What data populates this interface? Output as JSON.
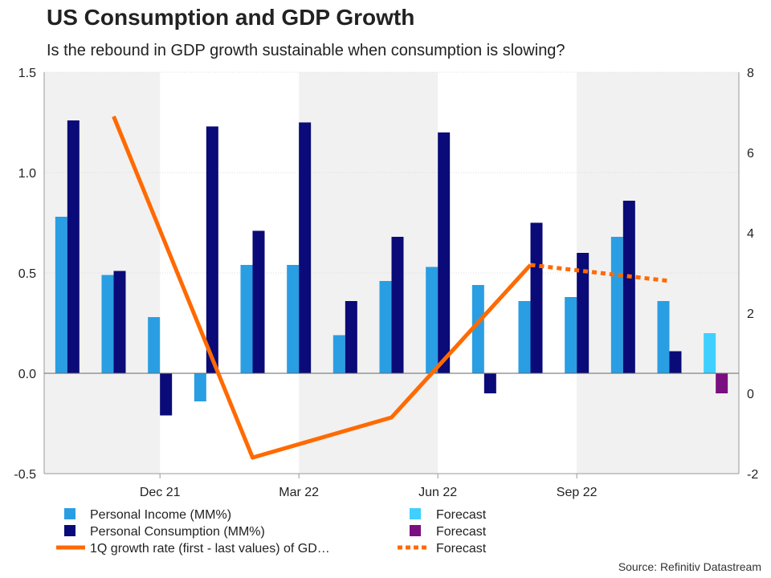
{
  "header": {
    "title": "US Consumption and GDP Growth",
    "subtitle": "Is the rebound in GDP growth sustainable when consumption is slowing?"
  },
  "footer": {
    "source": "Source: Refinitiv Datastream"
  },
  "colors": {
    "income": "#2a9ee3",
    "consumption": "#0a0a78",
    "gdp": "#ff6a00",
    "income_forecast": "#3fd0ff",
    "consumption_forecast": "#7a0f80",
    "shade": "#f1f1f1",
    "zero_line": "#666666",
    "grid": "#dddddd"
  },
  "chart_data": {
    "type": "bar",
    "months": [
      "Oct 21",
      "Nov 21",
      "Dec 21",
      "Jan 22",
      "Feb 22",
      "Mar 22",
      "Apr 22",
      "May 22",
      "Jun 22",
      "Jul 22",
      "Aug 22",
      "Sep 22",
      "Oct 22",
      "Nov 22"
    ],
    "x_tick_labels": [
      {
        "month": "Dec 21",
        "label": "Dec 21"
      },
      {
        "month": "Mar 22",
        "label": "Mar 22"
      },
      {
        "month": "Jun 22",
        "label": "Jun 22"
      },
      {
        "month": "Sep 22",
        "label": "Sep 22"
      }
    ],
    "y_left": {
      "min": -0.5,
      "max": 1.5,
      "ticks": [
        "-0.5",
        "0.0",
        "0.5",
        "1.0",
        "1.5"
      ]
    },
    "y_right": {
      "min": -2,
      "max": 8,
      "ticks": [
        "-2",
        "0",
        "2",
        "4",
        "6",
        "8"
      ]
    },
    "grid": true,
    "shaded_quarters": [
      "Q4 2021",
      "Q2 2022",
      "Q4 2022"
    ],
    "series": [
      {
        "name": "Personal Income (MM%)",
        "kind": "bar",
        "axis": "left",
        "values": [
          0.78,
          0.49,
          0.28,
          -0.14,
          0.54,
          0.54,
          0.19,
          0.46,
          0.53,
          0.44,
          0.36,
          0.38,
          0.68,
          0.36
        ],
        "forecast": {
          "name": "Forecast",
          "month": "Dec 22",
          "value": 0.2
        }
      },
      {
        "name": "Personal Consumption (MM%)",
        "kind": "bar",
        "axis": "left",
        "values": [
          1.26,
          0.51,
          -0.21,
          1.23,
          0.71,
          1.25,
          0.36,
          0.68,
          1.2,
          -0.1,
          0.75,
          0.6,
          0.86,
          0.11
        ],
        "forecast": {
          "name": "Forecast",
          "month": "Dec 22",
          "value": -0.1
        }
      },
      {
        "name": "1Q growth rate (first - last values) of GD…",
        "kind": "line",
        "axis": "right",
        "points": [
          {
            "month": "Nov 21",
            "value": 6.9
          },
          {
            "month": "Feb 22",
            "value": -1.6
          },
          {
            "month": "May 22",
            "value": -0.6
          },
          {
            "month": "Aug 22",
            "value": 3.2
          }
        ],
        "forecast": {
          "name": "Forecast",
          "points": [
            {
              "month": "Aug 22",
              "value": 3.2
            },
            {
              "month": "Nov 22",
              "value": 2.8
            }
          ]
        }
      }
    ],
    "legend": {
      "placement": "bottom",
      "items": [
        {
          "label": "Personal Income (MM%)"
        },
        {
          "label": "Personal Consumption (MM%)"
        },
        {
          "label": "1Q growth rate (first - last values) of GD…"
        },
        {
          "label": "Forecast"
        },
        {
          "label": "Forecast"
        },
        {
          "label": "Forecast"
        }
      ]
    }
  }
}
